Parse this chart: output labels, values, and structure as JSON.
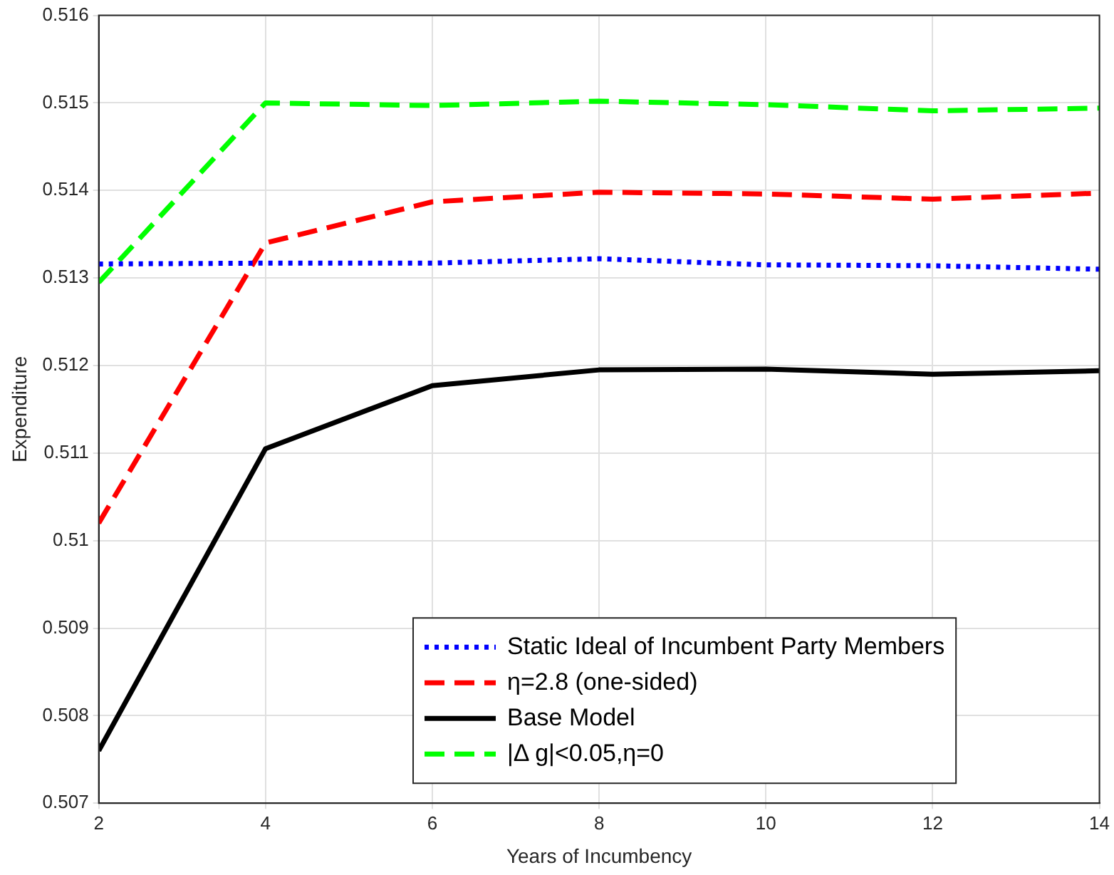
{
  "chart_data": {
    "type": "line",
    "xlabel": "Years of Incumbency",
    "ylabel": "Expenditure",
    "x": [
      2,
      4,
      6,
      8,
      10,
      12,
      14
    ],
    "series": [
      {
        "name": "Static Ideal of Incumbent Party Members",
        "color": "#0000ff",
        "line_style": "dotted",
        "values": [
          0.51316,
          0.51317,
          0.51317,
          0.51322,
          0.51315,
          0.51314,
          0.5131
        ]
      },
      {
        "name": "η=2.8 (one-sided)",
        "color": "#ff0000",
        "line_style": "dashed",
        "values": [
          0.5102,
          0.5134,
          0.51387,
          0.51398,
          0.51396,
          0.5139,
          0.51397
        ]
      },
      {
        "name": "Base Model",
        "color": "#000000",
        "line_style": "solid",
        "values": [
          0.5076,
          0.51105,
          0.51177,
          0.51195,
          0.51196,
          0.5119,
          0.51194
        ]
      },
      {
        "name": "|Δ g|<0.05,η=0",
        "color": "#00ff00",
        "line_style": "dashed",
        "values": [
          0.51295,
          0.515,
          0.51497,
          0.51502,
          0.51498,
          0.51491,
          0.51494
        ]
      }
    ],
    "xlim": [
      2,
      14
    ],
    "xticks": [
      2,
      4,
      6,
      8,
      10,
      12,
      14
    ],
    "ylim": [
      0.507,
      0.516
    ],
    "yticks": [
      0.507,
      0.508,
      0.509,
      0.51,
      0.511,
      0.512,
      0.513,
      0.514,
      0.515,
      0.516
    ],
    "grid": true,
    "legend": "bottom",
    "marker": "none"
  }
}
